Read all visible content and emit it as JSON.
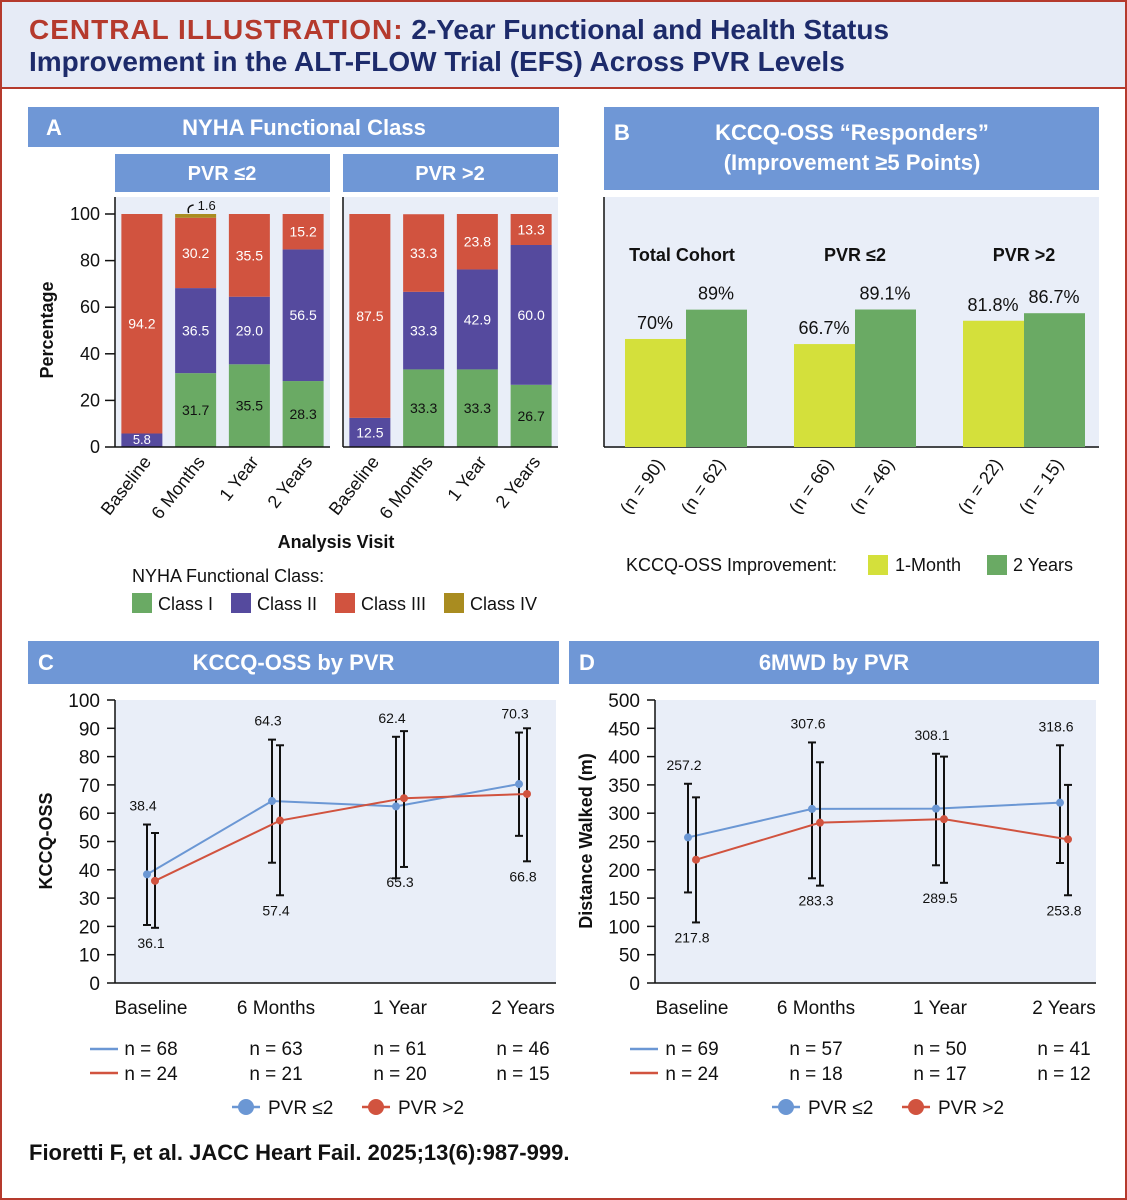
{
  "header": {
    "lead": "CENTRAL ILLUSTRATION:",
    "line1_rest": "2-Year Functional and Health Status",
    "line2": "Improvement in the ALT-FLOW Trial (EFS) Across PVR Levels"
  },
  "citation": "Fioretti F, et al. JACC Heart Fail. 2025;13(6):987-999.",
  "colors": {
    "class1": "#6aaa64",
    "class2": "#554a9e",
    "class3": "#d1533f",
    "class4": "#a98c20",
    "oneMonth": "#d4e03b",
    "twoYears": "#6aaa64",
    "pvrLow": "#6b97d4",
    "pvrHigh": "#d1533f",
    "panelHeader": "#6f97d6",
    "plotBg": "#e9eef8"
  },
  "panelA": {
    "letter": "A",
    "title": "NYHA  Functional  Class",
    "groups": [
      "PVR ≤2",
      "PVR >2"
    ],
    "ylabel": "Percentage",
    "xlabel": "Analysis Visit",
    "yticks": [
      "0",
      "20",
      "40",
      "60",
      "80",
      "100"
    ],
    "legend_title": "NYHA Functional Class:",
    "legend": [
      "Class I",
      "Class II",
      "Class III",
      "Class IV"
    ]
  },
  "panelB": {
    "letter": "B",
    "title_line1": "KCCQ-OSS “Responders”",
    "title_line2": "(Improvement ≥5 Points)",
    "legend_title": "KCCQ-OSS Improvement:",
    "legend": [
      "1-Month",
      "2 Years"
    ]
  },
  "panelC": {
    "letter": "C",
    "title": "KCCQ-OSS by PVR",
    "ylabel": "KCCQ-OSS",
    "yticks": [
      "0",
      "10",
      "20",
      "30",
      "40",
      "50",
      "60",
      "70",
      "80",
      "90",
      "100"
    ],
    "n_low": [
      "n = 68",
      "n = 63",
      "n = 61",
      "n = 46"
    ],
    "n_high": [
      "n = 24",
      "n = 21",
      "n = 20",
      "n = 15"
    ],
    "legend": [
      "PVR ≤2",
      "PVR >2"
    ]
  },
  "panelD": {
    "letter": "D",
    "title": "6MWD by PVR",
    "ylabel": "Distance Walked (m)",
    "yticks": [
      "0",
      "50",
      "100",
      "150",
      "200",
      "250",
      "300",
      "350",
      "400",
      "450",
      "500"
    ],
    "n_low": [
      "n = 69",
      "n = 57",
      "n = 50",
      "n = 41"
    ],
    "n_high": [
      "n = 24",
      "n = 18",
      "n = 17",
      "n = 12"
    ],
    "legend": [
      "PVR ≤2",
      "PVR >2"
    ]
  },
  "chart_data": [
    {
      "type": "bar",
      "stacked": true,
      "title": "NYHA Functional Class — PVR ≤2",
      "categories": [
        "Baseline",
        "6 Months",
        "1 Year",
        "2 Years"
      ],
      "series": [
        {
          "name": "Class I",
          "values": [
            0,
            31.7,
            35.5,
            28.3
          ],
          "labels": [
            "",
            "31.7",
            "35.5",
            "28.3"
          ]
        },
        {
          "name": "Class II",
          "values": [
            5.8,
            36.5,
            29.0,
            56.5
          ],
          "labels": [
            "5.8",
            "36.5",
            "29.0",
            "56.5"
          ]
        },
        {
          "name": "Class III",
          "values": [
            94.2,
            30.2,
            35.5,
            15.2
          ],
          "labels": [
            "94.2",
            "30.2",
            "35.5",
            "15.2"
          ]
        },
        {
          "name": "Class IV",
          "values": [
            0,
            1.6,
            0,
            0
          ],
          "labels": [
            "",
            "1.6",
            "",
            ""
          ]
        }
      ],
      "xlabel": "Analysis Visit",
      "ylabel": "Percentage",
      "ylim": [
        0,
        100
      ]
    },
    {
      "type": "bar",
      "stacked": true,
      "title": "NYHA Functional Class — PVR >2",
      "categories": [
        "Baseline",
        "6 Months",
        "1 Year",
        "2 Years"
      ],
      "series": [
        {
          "name": "Class I",
          "values": [
            0,
            33.3,
            33.3,
            26.7
          ],
          "labels": [
            "",
            "33.3",
            "33.3",
            "26.7"
          ]
        },
        {
          "name": "Class II",
          "values": [
            12.5,
            33.3,
            42.9,
            60.0
          ],
          "labels": [
            "12.5",
            "33.3",
            "42.9",
            "60.0"
          ]
        },
        {
          "name": "Class III",
          "values": [
            87.5,
            33.3,
            23.8,
            13.3
          ],
          "labels": [
            "87.5",
            "33.3",
            "23.8",
            "13.3"
          ]
        },
        {
          "name": "Class IV",
          "values": [
            0,
            0,
            0,
            0
          ],
          "labels": [
            "",
            "",
            "",
            ""
          ]
        }
      ],
      "xlabel": "Analysis Visit",
      "ylabel": "Percentage",
      "ylim": [
        0,
        100
      ]
    },
    {
      "type": "bar",
      "title": "KCCQ-OSS “Responders” (Improvement ≥5 Points)",
      "groups": [
        "Total Cohort",
        "PVR ≤2",
        "PVR >2"
      ],
      "series": [
        {
          "name": "1-Month",
          "values": [
            70,
            66.7,
            81.8
          ],
          "labels": [
            "70%",
            "66.7%",
            "81.8%"
          ],
          "n": [
            "(n = 90)",
            "(n = 66)",
            "(n = 22)"
          ]
        },
        {
          "name": "2 Years",
          "values": [
            89,
            89.1,
            86.7
          ],
          "labels": [
            "89%",
            "89.1%",
            "86.7%"
          ],
          "n": [
            "(n = 62)",
            "(n = 46)",
            "(n = 15)"
          ]
        }
      ],
      "ylim": [
        0,
        162
      ]
    },
    {
      "type": "line",
      "title": "KCCQ-OSS by PVR",
      "categories": [
        "Baseline",
        "6 Months",
        "1 Year",
        "2 Years"
      ],
      "series": [
        {
          "name": "PVR ≤2",
          "values": [
            38.4,
            64.3,
            62.4,
            70.3
          ],
          "labels": [
            "38.4",
            "64.3",
            "62.4",
            "70.3"
          ],
          "lower": [
            20.5,
            42.5,
            37,
            52
          ],
          "upper": [
            56,
            86,
            87,
            88.5
          ]
        },
        {
          "name": "PVR >2",
          "values": [
            36.1,
            57.4,
            65.3,
            66.8
          ],
          "labels": [
            "36.1",
            "57.4",
            "65.3",
            "66.8"
          ],
          "lower": [
            19.5,
            31,
            41,
            43
          ],
          "upper": [
            53,
            84,
            89,
            90
          ]
        }
      ],
      "ylabel": "KCCQ-OSS",
      "ylim": [
        0,
        100
      ]
    },
    {
      "type": "line",
      "title": "6MWD by PVR",
      "categories": [
        "Baseline",
        "6 Months",
        "1 Year",
        "2 Years"
      ],
      "series": [
        {
          "name": "PVR ≤2",
          "values": [
            257.2,
            307.6,
            308.1,
            318.6
          ],
          "labels": [
            "257.2",
            "307.6",
            "308.1",
            "318.6"
          ],
          "lower": [
            160,
            185,
            208,
            212
          ],
          "upper": [
            352,
            425,
            405,
            420
          ]
        },
        {
          "name": "PVR >2",
          "values": [
            217.8,
            283.3,
            289.5,
            253.8
          ],
          "labels": [
            "217.8",
            "283.3",
            "289.5",
            "253.8"
          ],
          "lower": [
            107,
            172,
            177,
            155
          ],
          "upper": [
            328,
            390,
            400,
            350
          ]
        }
      ],
      "ylabel": "Distance Walked (m)",
      "ylim": [
        0,
        500
      ]
    }
  ]
}
